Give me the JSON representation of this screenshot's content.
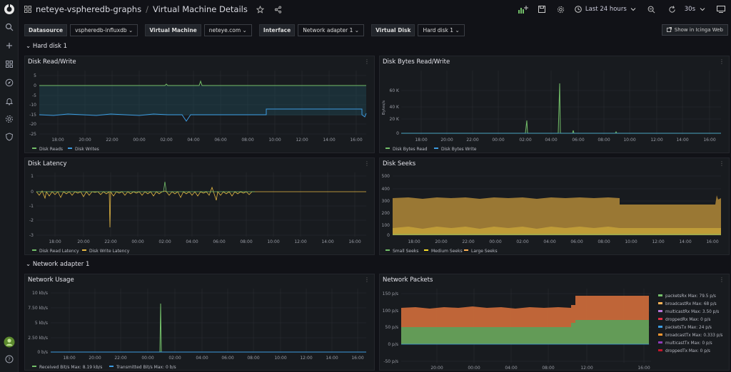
{
  "breadcrumb": {
    "folder": "neteye-vspheredb-graphs",
    "separator": "/",
    "title": "Virtual Machine Details"
  },
  "toolbar": {
    "time_range": "Last 24 hours",
    "refresh": "30s"
  },
  "variables": [
    {
      "label": "Datasource",
      "value": "vspheredb-influxdb"
    },
    {
      "label": "Virtual Machine",
      "value": "neteye.com"
    },
    {
      "label": "Interface",
      "value": "Network adapter 1"
    },
    {
      "label": "Virtual Disk",
      "value": "Hard disk 1"
    }
  ],
  "icinga_button": "Show in Icinga Web",
  "rows": {
    "hard_disk": "Hard disk 1",
    "network_adapter": "Network adapter 1"
  },
  "panels": {
    "disk_rw": {
      "title": "Disk Read/Write",
      "y_ticks": [
        "5",
        "0",
        "-5",
        "-10",
        "-15",
        "-20",
        "-25"
      ],
      "x_ticks": [
        "18:00",
        "20:00",
        "22:00",
        "00:00",
        "02:00",
        "04:00",
        "06:00",
        "08:00",
        "10:00",
        "12:00",
        "14:00",
        "16:00"
      ],
      "legend": [
        "Disk Reads",
        "Disk Writes"
      ]
    },
    "disk_bytes": {
      "title": "Disk Bytes Read/Write",
      "y_label": "Bytes/s",
      "y_ticks": [
        "60 K",
        "40 K",
        "20 K",
        "0"
      ],
      "x_ticks": [
        "18:00",
        "20:00",
        "22:00",
        "00:00",
        "02:00",
        "04:00",
        "06:00",
        "08:00",
        "10:00",
        "12:00",
        "14:00",
        "16:00"
      ],
      "legend": [
        "Disk Bytes Read",
        "Disk Bytes Write"
      ]
    },
    "disk_latency": {
      "title": "Disk Latency",
      "y_ticks": [
        "1",
        "0",
        "-1",
        "-2",
        "-3"
      ],
      "x_ticks": [
        "18:00",
        "20:00",
        "22:00",
        "00:00",
        "02:00",
        "04:00",
        "06:00",
        "08:00",
        "10:00",
        "12:00",
        "14:00",
        "16:00"
      ],
      "legend": [
        "Disk Read Latency",
        "Disk Write Latency"
      ]
    },
    "disk_seeks": {
      "title": "Disk Seeks",
      "y_ticks": [
        "500",
        "400",
        "300",
        "200",
        "100",
        "0"
      ],
      "x_ticks": [
        "18:00",
        "20:00",
        "22:00",
        "00:00",
        "02:00",
        "04:00",
        "06:00",
        "08:00",
        "10:00",
        "12:00",
        "14:00",
        "16:00"
      ],
      "legend": [
        "Small Seeks",
        "Medium Seeks",
        "Large Seeks"
      ]
    },
    "network_usage": {
      "title": "Network Usage",
      "y_ticks": [
        "10 kb/s",
        "7.50 kb/s",
        "5 kb/s",
        "2.50 kb/s",
        "0 b/s"
      ],
      "x_ticks": [
        "18:00",
        "20:00",
        "22:00",
        "00:00",
        "02:00",
        "04:00",
        "06:00",
        "08:00",
        "10:00",
        "12:00",
        "14:00",
        "16:00"
      ],
      "legend": [
        "Received Bit/s  Max: 8.19 kb/s",
        "Transmitted Bit/s  Max: 0 b/s"
      ]
    },
    "network_packets": {
      "title": "Network Packets",
      "y_ticks": [
        "150 p/s",
        "100 p/s",
        "50 p/s",
        "0 p/s",
        "-50 p/s"
      ],
      "x_ticks": [
        "20:00",
        "00:00",
        "04:00",
        "08:00",
        "12:00",
        "16:00"
      ],
      "legend": [
        "packetsRx  Max: 79.5 p/s",
        "broadcastRx  Max: 68 p/s",
        "multicastRx  Max: 3.50 p/s",
        "droppedRx  Max: 0 p/s",
        "packetsTx  Max: 24 p/s",
        "broadcastTx  Max: 0.333 p/s",
        "multicastTx  Max: 0 p/s",
        "droppedTx  Max: 0 p/s"
      ]
    }
  },
  "colors": {
    "green": "#73bf69",
    "blue": "#3d9be0",
    "yellow": "#fade2a",
    "orange": "#ffb357",
    "seek_orange": "#caa042",
    "pkt_orange": "#c8693a",
    "pkt_green": "#5e9e58",
    "purple": "#b877d9",
    "red": "#e02f44",
    "darkred": "#8f3bb8"
  }
}
